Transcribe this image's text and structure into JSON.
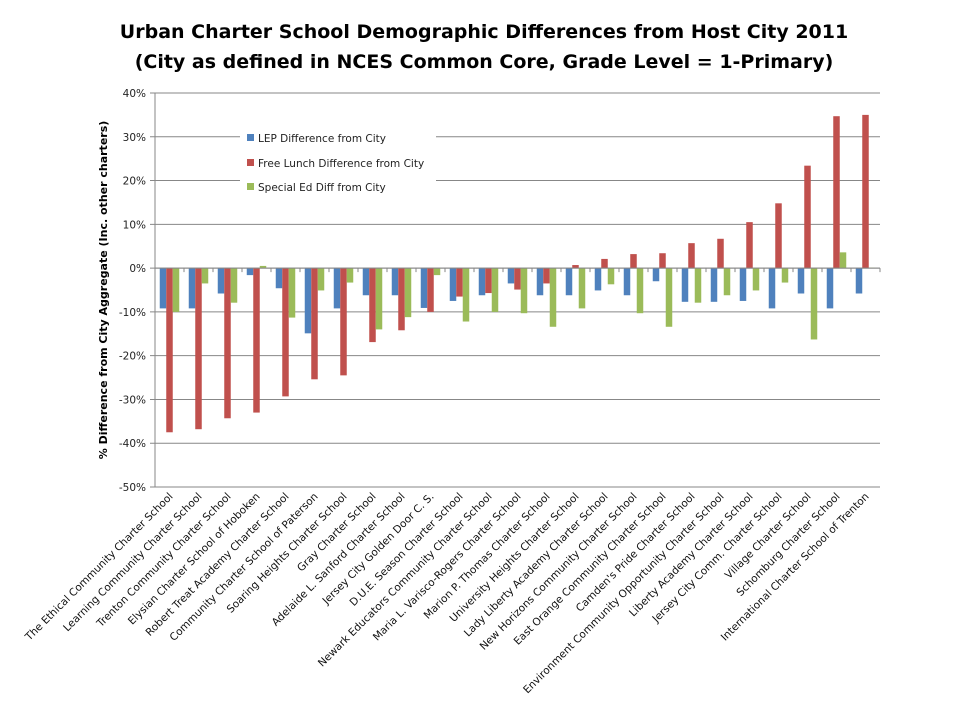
{
  "chart_data": {
    "type": "bar",
    "title": "Urban Charter School Demographic Differences from Host City 2011",
    "subtitle": "(City as defined in NCES Common Core, Grade Level = 1-Primary)",
    "xlabel": "",
    "ylabel": "% Difference from City Aggregate (Inc. other charters)",
    "ylim": [
      -50,
      40
    ],
    "yticks": [
      40,
      30,
      20,
      10,
      0,
      -10,
      -20,
      -30,
      -40,
      -50
    ],
    "ytick_labels": [
      "40%",
      "30%",
      "20%",
      "10%",
      "0%",
      "-10%",
      "-20%",
      "-30%",
      "-40%",
      "-50%"
    ],
    "grid": true,
    "legend_position": "top-left inside plot",
    "categories": [
      "The Ethical Community Charter School",
      "Learning Community Charter School",
      "Trenton Community Charter School",
      "Elysian Charter School of Hoboken",
      "Robert Treat Academy Charter School",
      "Community Charter School of Paterson",
      "Soaring Heights Charter School",
      "Gray Charter School",
      "Adelaide L. Sanford Charter School",
      "Jersey City Golden Door C. S.",
      "D.U.E. Season Charter School",
      "Newark Educators Community Charter School",
      "Maria L. Varisco-Rogers Charter School",
      "Marion P. Thomas Charter School",
      "University Heights Charter School",
      "Lady Liberty Academy Charter School",
      "New Horizons Community Charter School",
      "East Orange Community Charter School",
      "Camden's Pride Charter School",
      "Environment Community Opportunity Charter School",
      "Liberty Academy Charter School",
      "Jersey City Comm. Charter School",
      "Village Charter School",
      "Schomburg Charter School",
      "International Charter School of Trenton"
    ],
    "series": [
      {
        "name": "LEP Difference from City",
        "color": "#4F81BD",
        "values": [
          -9.2,
          -9.2,
          -5.8,
          -1.6,
          -4.6,
          -14.9,
          -9.2,
          -6.2,
          -6.2,
          -9.1,
          -7.5,
          -6.2,
          -3.5,
          -6.2,
          -6.2,
          -5.1,
          -6.2,
          -3.0,
          -7.7,
          -7.7,
          -7.5,
          -9.2,
          -5.8,
          -9.2,
          -5.8
        ]
      },
      {
        "name": "Free Lunch Difference from City",
        "color": "#C0504D",
        "values": [
          -37.5,
          -36.8,
          -34.3,
          -33.0,
          -29.3,
          -25.4,
          -24.5,
          -16.9,
          -14.2,
          -10.0,
          -6.5,
          -5.7,
          -4.9,
          -3.5,
          0.7,
          2.1,
          3.2,
          3.4,
          5.7,
          6.7,
          10.5,
          14.8,
          23.4,
          34.7,
          35.0
        ]
      },
      {
        "name": "Special Ed Diff from City",
        "color": "#9BBB59",
        "values": [
          -10.0,
          -3.5,
          -7.9,
          0.5,
          -11.3,
          -5.1,
          -3.3,
          -14.0,
          -11.2,
          -1.6,
          -12.2,
          -10.0,
          -10.3,
          -13.4,
          -9.2,
          -3.7,
          -10.3,
          -13.4,
          -7.9,
          -6.2,
          -5.1,
          -3.3,
          -16.3,
          3.6,
          0.1
        ]
      }
    ]
  }
}
